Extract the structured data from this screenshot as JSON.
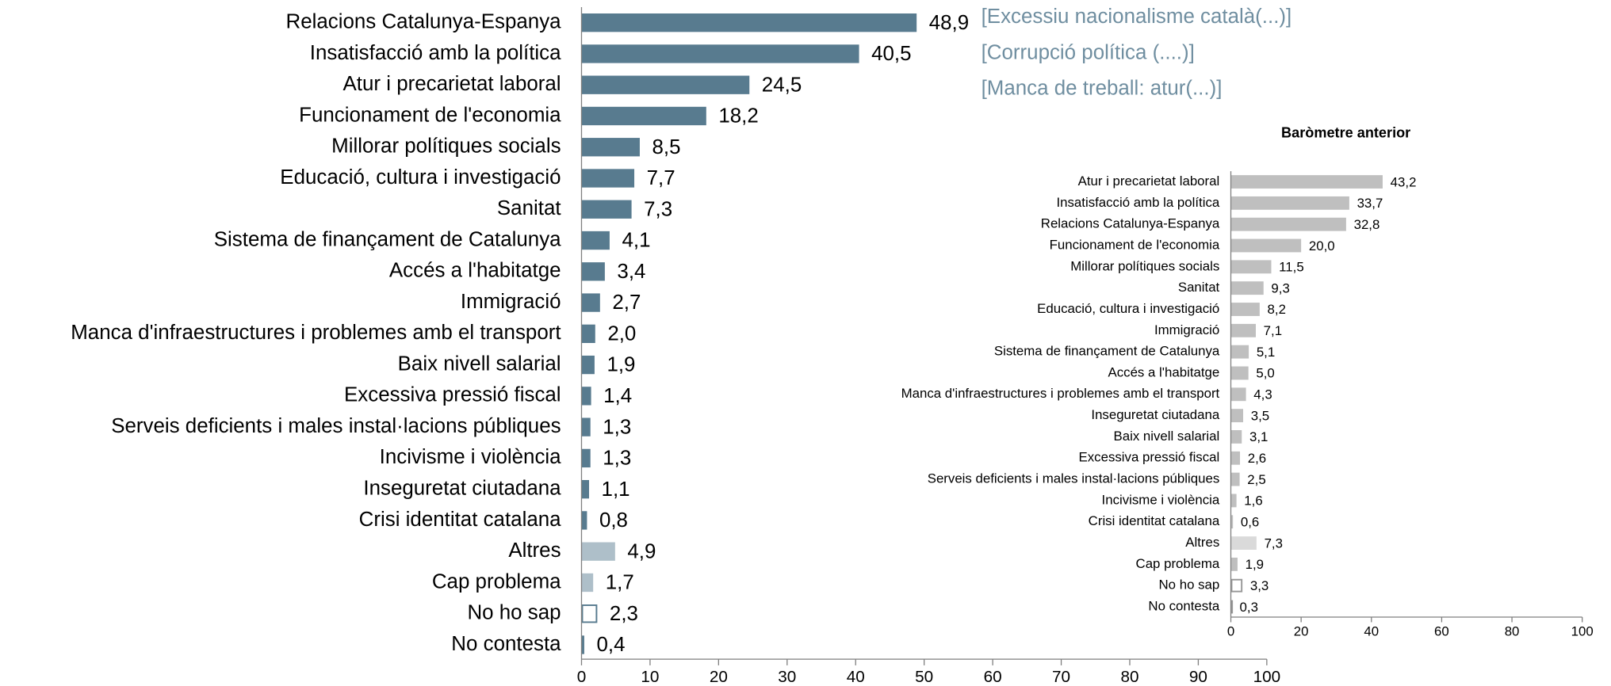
{
  "chart_data": [
    {
      "type": "barh",
      "categories": [
        "Relacions Catalunya-Espanya",
        "Insatisfacció amb la política",
        "Atur i precarietat laboral",
        "Funcionament de l'economia",
        "Millorar polítiques socials",
        "Educació, cultura i investigació",
        "Sanitat",
        "Sistema de finançament de Catalunya",
        "Accés a l'habitatge",
        "Immigració",
        "Manca d'infraestructures i problemes amb el transport",
        "Baix nivell salarial",
        "Excessiva pressió fiscal",
        "Serveis deficients i males instal·lacions públiques",
        "Incivisme i violència",
        "Inseguretat ciutadana",
        "Crisi identitat catalana",
        "Altres",
        "Cap problema",
        "No ho sap",
        "No contesta"
      ],
      "values": [
        48.9,
        40.5,
        24.5,
        18.2,
        8.5,
        7.7,
        7.3,
        4.1,
        3.4,
        2.7,
        2.0,
        1.9,
        1.4,
        1.3,
        1.3,
        1.1,
        0.8,
        4.9,
        1.7,
        2.3,
        0.4
      ],
      "value_labels": [
        "48,9",
        "40,5",
        "24,5",
        "18,2",
        "8,5",
        "7,7",
        "7,3",
        "4,1",
        "3,4",
        "2,7",
        "2,0",
        "1,9",
        "1,4",
        "1,3",
        "1,3",
        "1,1",
        "0,8",
        "4,9",
        "1,7",
        "2,3",
        "0,4"
      ],
      "colors": [
        "#587b8f",
        "#587b8f",
        "#587b8f",
        "#587b8f",
        "#587b8f",
        "#587b8f",
        "#587b8f",
        "#587b8f",
        "#587b8f",
        "#587b8f",
        "#587b8f",
        "#587b8f",
        "#587b8f",
        "#587b8f",
        "#587b8f",
        "#587b8f",
        "#587b8f",
        "#aebfc9",
        "#aebfc9",
        "#ffffff",
        "#ffffff"
      ],
      "edgecolor": "#587b8f",
      "annotations": [
        "[Excessiu nacionalisme català(...)]",
        "[Corrupció política (....)]",
        "[Manca de treball: atur(...)]"
      ],
      "xlim": [
        0,
        100
      ],
      "xticks": [
        0,
        10,
        20,
        30,
        40,
        50,
        60,
        70,
        80,
        90,
        100
      ]
    },
    {
      "type": "barh",
      "title": "Baròmetre anterior",
      "categories": [
        "Atur i precarietat laboral",
        "Insatisfacció amb la política",
        "Relacions Catalunya-Espanya",
        "Funcionament de l'economia",
        "Millorar polítiques socials",
        "Sanitat",
        "Educació, cultura i investigació",
        "Immigració",
        "Sistema de finançament de Catalunya",
        "Accés a l'habitatge",
        "Manca d'infraestructures i problemes amb el transport",
        "Inseguretat ciutadana",
        "Baix nivell salarial",
        "Excessiva pressió fiscal",
        "Serveis deficients i males instal·lacions públiques",
        "Incivisme i violència",
        "Crisi identitat catalana",
        "Altres",
        "Cap problema",
        "No ho sap",
        "No contesta"
      ],
      "values": [
        43.2,
        33.7,
        32.8,
        20.0,
        11.5,
        9.3,
        8.2,
        7.1,
        5.1,
        5.0,
        4.3,
        3.5,
        3.1,
        2.6,
        2.5,
        1.6,
        0.6,
        7.3,
        1.9,
        3.3,
        0.3
      ],
      "value_labels": [
        "43,2",
        "33,7",
        "32,8",
        "20,0",
        "11,5",
        "9,3",
        "8,2",
        "7,1",
        "5,1",
        "5,0",
        "4,3",
        "3,5",
        "3,1",
        "2,6",
        "2,5",
        "1,6",
        "0,6",
        "7,3",
        "1,9",
        "3,3",
        "0,3"
      ],
      "colors": [
        "#bfbfbf",
        "#bfbfbf",
        "#bfbfbf",
        "#bfbfbf",
        "#bfbfbf",
        "#bfbfbf",
        "#bfbfbf",
        "#bfbfbf",
        "#bfbfbf",
        "#bfbfbf",
        "#bfbfbf",
        "#bfbfbf",
        "#bfbfbf",
        "#bfbfbf",
        "#bfbfbf",
        "#bfbfbf",
        "#bfbfbf",
        "#dadada",
        "#bfbfbf",
        "#ffffff",
        "#ffffff"
      ],
      "edgecolor": "#999999",
      "xlim": [
        0,
        100
      ],
      "xticks": [
        0,
        20,
        40,
        60,
        80,
        100
      ]
    }
  ]
}
